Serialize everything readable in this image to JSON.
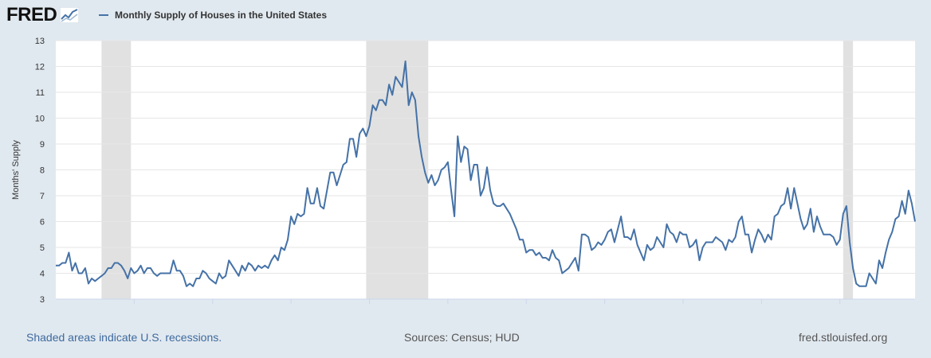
{
  "header": {
    "logo_text": "FRED",
    "logo_icon": "line-graph-icon",
    "legend_label": "Monthly Supply of Houses in the United States"
  },
  "colors": {
    "series": "#4572a7",
    "recession": "#e1e1e1",
    "background": "#e1e9f0",
    "plot": "#ffffff",
    "grid": "#e6e6e6"
  },
  "footer": {
    "recession_note": "Shaded areas indicate U.S. recessions.",
    "sources": "Sources: Census; HUD",
    "url": "fred.stlouisfed.org"
  },
  "chart_data": {
    "type": "line",
    "title": "Monthly Supply of Houses in the United States",
    "xlabel": "",
    "ylabel": "Months' Supply",
    "ylim": [
      3,
      13
    ],
    "yticks": [
      3,
      4,
      5,
      6,
      7,
      8,
      9,
      10,
      11,
      12,
      13
    ],
    "xlim": [
      "2000-01",
      "2021-12"
    ],
    "xticks": [
      "2002",
      "2004",
      "2006",
      "2008",
      "2010",
      "2012",
      "2014",
      "2016",
      "2018",
      "2020"
    ],
    "grid": "horizontal",
    "recessions": [
      {
        "start": "2001-03",
        "end": "2001-11"
      },
      {
        "start": "2007-12",
        "end": "2009-06"
      },
      {
        "start": "2020-02",
        "end": "2020-04"
      }
    ],
    "series": [
      {
        "name": "Monthly Supply of Houses in the United States",
        "points": [
          [
            "2000-01",
            4.3
          ],
          [
            "2000-02",
            4.3
          ],
          [
            "2000-03",
            4.4
          ],
          [
            "2000-04",
            4.4
          ],
          [
            "2000-05",
            4.8
          ],
          [
            "2000-06",
            4.1
          ],
          [
            "2000-07",
            4.4
          ],
          [
            "2000-08",
            4.0
          ],
          [
            "2000-09",
            4.0
          ],
          [
            "2000-10",
            4.2
          ],
          [
            "2000-11",
            3.6
          ],
          [
            "2000-12",
            3.8
          ],
          [
            "2001-01",
            3.7
          ],
          [
            "2001-02",
            3.8
          ],
          [
            "2001-03",
            3.9
          ],
          [
            "2001-04",
            4.0
          ],
          [
            "2001-05",
            4.2
          ],
          [
            "2001-06",
            4.2
          ],
          [
            "2001-07",
            4.4
          ],
          [
            "2001-08",
            4.4
          ],
          [
            "2001-09",
            4.3
          ],
          [
            "2001-10",
            4.1
          ],
          [
            "2001-11",
            3.8
          ],
          [
            "2001-12",
            4.2
          ],
          [
            "2002-01",
            4.0
          ],
          [
            "2002-02",
            4.1
          ],
          [
            "2002-03",
            4.3
          ],
          [
            "2002-04",
            4.0
          ],
          [
            "2002-05",
            4.2
          ],
          [
            "2002-06",
            4.2
          ],
          [
            "2002-07",
            4.0
          ],
          [
            "2002-08",
            3.9
          ],
          [
            "2002-09",
            4.0
          ],
          [
            "2002-10",
            4.0
          ],
          [
            "2002-11",
            4.0
          ],
          [
            "2002-12",
            4.0
          ],
          [
            "2003-01",
            4.5
          ],
          [
            "2003-02",
            4.1
          ],
          [
            "2003-03",
            4.1
          ],
          [
            "2003-04",
            3.9
          ],
          [
            "2003-05",
            3.5
          ],
          [
            "2003-06",
            3.6
          ],
          [
            "2003-07",
            3.5
          ],
          [
            "2003-08",
            3.8
          ],
          [
            "2003-09",
            3.8
          ],
          [
            "2003-10",
            4.1
          ],
          [
            "2003-11",
            4.0
          ],
          [
            "2003-12",
            3.8
          ],
          [
            "2004-01",
            3.7
          ],
          [
            "2004-02",
            3.6
          ],
          [
            "2004-03",
            4.0
          ],
          [
            "2004-04",
            3.8
          ],
          [
            "2004-05",
            3.9
          ],
          [
            "2004-06",
            4.5
          ],
          [
            "2004-07",
            4.3
          ],
          [
            "2004-08",
            4.1
          ],
          [
            "2004-09",
            3.9
          ],
          [
            "2004-10",
            4.3
          ],
          [
            "2004-11",
            4.1
          ],
          [
            "2004-12",
            4.4
          ],
          [
            "2005-01",
            4.3
          ],
          [
            "2005-02",
            4.1
          ],
          [
            "2005-03",
            4.3
          ],
          [
            "2005-04",
            4.2
          ],
          [
            "2005-05",
            4.3
          ],
          [
            "2005-06",
            4.2
          ],
          [
            "2005-07",
            4.5
          ],
          [
            "2005-08",
            4.7
          ],
          [
            "2005-09",
            4.5
          ],
          [
            "2005-10",
            5.0
          ],
          [
            "2005-11",
            4.9
          ],
          [
            "2005-12",
            5.3
          ],
          [
            "2006-01",
            6.2
          ],
          [
            "2006-02",
            5.9
          ],
          [
            "2006-03",
            6.3
          ],
          [
            "2006-04",
            6.2
          ],
          [
            "2006-05",
            6.3
          ],
          [
            "2006-06",
            7.3
          ],
          [
            "2006-07",
            6.7
          ],
          [
            "2006-08",
            6.7
          ],
          [
            "2006-09",
            7.3
          ],
          [
            "2006-10",
            6.6
          ],
          [
            "2006-11",
            6.5
          ],
          [
            "2006-12",
            7.2
          ],
          [
            "2007-01",
            7.9
          ],
          [
            "2007-02",
            7.9
          ],
          [
            "2007-03",
            7.4
          ],
          [
            "2007-04",
            7.8
          ],
          [
            "2007-05",
            8.2
          ],
          [
            "2007-06",
            8.3
          ],
          [
            "2007-07",
            9.2
          ],
          [
            "2007-08",
            9.2
          ],
          [
            "2007-09",
            8.5
          ],
          [
            "2007-10",
            9.4
          ],
          [
            "2007-11",
            9.6
          ],
          [
            "2007-12",
            9.3
          ],
          [
            "2008-01",
            9.7
          ],
          [
            "2008-02",
            10.5
          ],
          [
            "2008-03",
            10.3
          ],
          [
            "2008-04",
            10.7
          ],
          [
            "2008-05",
            10.7
          ],
          [
            "2008-06",
            10.5
          ],
          [
            "2008-07",
            11.3
          ],
          [
            "2008-08",
            10.9
          ],
          [
            "2008-09",
            11.6
          ],
          [
            "2008-10",
            11.4
          ],
          [
            "2008-11",
            11.2
          ],
          [
            "2008-12",
            12.2
          ],
          [
            "2009-01",
            10.5
          ],
          [
            "2009-02",
            11.0
          ],
          [
            "2009-03",
            10.7
          ],
          [
            "2009-04",
            9.3
          ],
          [
            "2009-05",
            8.5
          ],
          [
            "2009-06",
            7.9
          ],
          [
            "2009-07",
            7.5
          ],
          [
            "2009-08",
            7.8
          ],
          [
            "2009-09",
            7.4
          ],
          [
            "2009-10",
            7.6
          ],
          [
            "2009-11",
            8.0
          ],
          [
            "2009-12",
            8.1
          ],
          [
            "2010-01",
            8.3
          ],
          [
            "2010-02",
            7.2
          ],
          [
            "2010-03",
            6.2
          ],
          [
            "2010-04",
            9.3
          ],
          [
            "2010-05",
            8.3
          ],
          [
            "2010-06",
            8.9
          ],
          [
            "2010-07",
            8.8
          ],
          [
            "2010-08",
            7.6
          ],
          [
            "2010-09",
            8.2
          ],
          [
            "2010-10",
            8.2
          ],
          [
            "2010-11",
            7.0
          ],
          [
            "2010-12",
            7.3
          ],
          [
            "2011-01",
            8.1
          ],
          [
            "2011-02",
            7.2
          ],
          [
            "2011-03",
            6.7
          ],
          [
            "2011-04",
            6.6
          ],
          [
            "2011-05",
            6.6
          ],
          [
            "2011-06",
            6.7
          ],
          [
            "2011-07",
            6.5
          ],
          [
            "2011-08",
            6.3
          ],
          [
            "2011-09",
            6.0
          ],
          [
            "2011-10",
            5.7
          ],
          [
            "2011-11",
            5.3
          ],
          [
            "2011-12",
            5.3
          ],
          [
            "2012-01",
            4.8
          ],
          [
            "2012-02",
            4.9
          ],
          [
            "2012-03",
            4.9
          ],
          [
            "2012-04",
            4.7
          ],
          [
            "2012-05",
            4.8
          ],
          [
            "2012-06",
            4.6
          ],
          [
            "2012-07",
            4.6
          ],
          [
            "2012-08",
            4.5
          ],
          [
            "2012-09",
            4.9
          ],
          [
            "2012-10",
            4.6
          ],
          [
            "2012-11",
            4.5
          ],
          [
            "2012-12",
            4.0
          ],
          [
            "2013-01",
            4.1
          ],
          [
            "2013-02",
            4.2
          ],
          [
            "2013-03",
            4.4
          ],
          [
            "2013-04",
            4.6
          ],
          [
            "2013-05",
            4.1
          ],
          [
            "2013-06",
            5.5
          ],
          [
            "2013-07",
            5.5
          ],
          [
            "2013-08",
            5.4
          ],
          [
            "2013-09",
            4.9
          ],
          [
            "2013-10",
            5.0
          ],
          [
            "2013-11",
            5.2
          ],
          [
            "2013-12",
            5.1
          ],
          [
            "2014-01",
            5.3
          ],
          [
            "2014-02",
            5.6
          ],
          [
            "2014-03",
            5.7
          ],
          [
            "2014-04",
            5.2
          ],
          [
            "2014-05",
            5.7
          ],
          [
            "2014-06",
            6.2
          ],
          [
            "2014-07",
            5.4
          ],
          [
            "2014-08",
            5.4
          ],
          [
            "2014-09",
            5.3
          ],
          [
            "2014-10",
            5.7
          ],
          [
            "2014-11",
            5.1
          ],
          [
            "2014-12",
            4.8
          ],
          [
            "2015-01",
            4.5
          ],
          [
            "2015-02",
            5.1
          ],
          [
            "2015-03",
            4.9
          ],
          [
            "2015-04",
            5.0
          ],
          [
            "2015-05",
            5.4
          ],
          [
            "2015-06",
            5.2
          ],
          [
            "2015-07",
            5.0
          ],
          [
            "2015-08",
            5.9
          ],
          [
            "2015-09",
            5.6
          ],
          [
            "2015-10",
            5.5
          ],
          [
            "2015-11",
            5.2
          ],
          [
            "2015-12",
            5.6
          ],
          [
            "2016-01",
            5.5
          ],
          [
            "2016-02",
            5.5
          ],
          [
            "2016-03",
            5.0
          ],
          [
            "2016-04",
            5.1
          ],
          [
            "2016-05",
            5.3
          ],
          [
            "2016-06",
            4.5
          ],
          [
            "2016-07",
            5.0
          ],
          [
            "2016-08",
            5.2
          ],
          [
            "2016-09",
            5.2
          ],
          [
            "2016-10",
            5.2
          ],
          [
            "2016-11",
            5.4
          ],
          [
            "2016-12",
            5.3
          ],
          [
            "2017-01",
            5.2
          ],
          [
            "2017-02",
            4.9
          ],
          [
            "2017-03",
            5.3
          ],
          [
            "2017-04",
            5.2
          ],
          [
            "2017-05",
            5.4
          ],
          [
            "2017-06",
            6.0
          ],
          [
            "2017-07",
            6.2
          ],
          [
            "2017-08",
            5.5
          ],
          [
            "2017-09",
            5.5
          ],
          [
            "2017-10",
            4.8
          ],
          [
            "2017-11",
            5.3
          ],
          [
            "2017-12",
            5.7
          ],
          [
            "2018-01",
            5.5
          ],
          [
            "2018-02",
            5.2
          ],
          [
            "2018-03",
            5.5
          ],
          [
            "2018-04",
            5.3
          ],
          [
            "2018-05",
            6.2
          ],
          [
            "2018-06",
            6.3
          ],
          [
            "2018-07",
            6.6
          ],
          [
            "2018-08",
            6.7
          ],
          [
            "2018-09",
            7.3
          ],
          [
            "2018-10",
            6.5
          ],
          [
            "2018-11",
            7.3
          ],
          [
            "2018-12",
            6.7
          ],
          [
            "2019-01",
            6.1
          ],
          [
            "2019-02",
            5.7
          ],
          [
            "2019-03",
            5.9
          ],
          [
            "2019-04",
            6.5
          ],
          [
            "2019-05",
            5.6
          ],
          [
            "2019-06",
            6.2
          ],
          [
            "2019-07",
            5.8
          ],
          [
            "2019-08",
            5.5
          ],
          [
            "2019-09",
            5.5
          ],
          [
            "2019-10",
            5.5
          ],
          [
            "2019-11",
            5.4
          ],
          [
            "2019-12",
            5.1
          ],
          [
            "2020-01",
            5.3
          ],
          [
            "2020-02",
            6.3
          ],
          [
            "2020-03",
            6.6
          ],
          [
            "2020-04",
            5.2
          ],
          [
            "2020-05",
            4.2
          ],
          [
            "2020-06",
            3.6
          ],
          [
            "2020-07",
            3.5
          ],
          [
            "2020-08",
            3.5
          ],
          [
            "2020-09",
            3.5
          ],
          [
            "2020-10",
            4.0
          ],
          [
            "2020-11",
            3.8
          ],
          [
            "2020-12",
            3.6
          ],
          [
            "2021-01",
            4.5
          ],
          [
            "2021-02",
            4.2
          ],
          [
            "2021-03",
            4.8
          ],
          [
            "2021-04",
            5.3
          ],
          [
            "2021-05",
            5.6
          ],
          [
            "2021-06",
            6.1
          ],
          [
            "2021-07",
            6.2
          ],
          [
            "2021-08",
            6.8
          ],
          [
            "2021-09",
            6.3
          ],
          [
            "2021-10",
            7.2
          ],
          [
            "2021-11",
            6.7
          ],
          [
            "2021-12",
            6.0
          ]
        ]
      }
    ]
  }
}
